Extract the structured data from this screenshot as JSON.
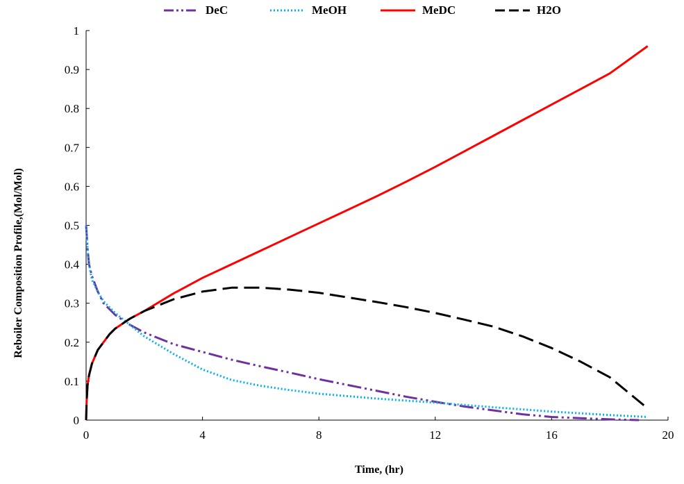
{
  "chart_data": {
    "type": "line",
    "title": "",
    "xlabel": "Time, (hr)",
    "ylabel": "Reboiler Composition Profile,(Mol/Mol)",
    "xlim": [
      0,
      20
    ],
    "ylim": [
      0,
      1
    ],
    "x_ticks": [
      "0",
      "4",
      "8",
      "12",
      "16",
      "20"
    ],
    "y_ticks": [
      "0",
      "0.1",
      "0.2",
      "0.3",
      "0.4",
      "0.5",
      "0.6",
      "0.7",
      "0.8",
      "0.9",
      "1"
    ],
    "grid": false,
    "legend_position": "top",
    "series": [
      {
        "name": "DeC",
        "color": "#7030a0",
        "dash": "dash-dot-dot",
        "points": [
          [
            0,
            0.5
          ],
          [
            0.05,
            0.44
          ],
          [
            0.1,
            0.4
          ],
          [
            0.2,
            0.37
          ],
          [
            0.4,
            0.33
          ],
          [
            0.6,
            0.3
          ],
          [
            0.8,
            0.285
          ],
          [
            1,
            0.27
          ],
          [
            1.5,
            0.245
          ],
          [
            2,
            0.225
          ],
          [
            3,
            0.195
          ],
          [
            4,
            0.175
          ],
          [
            5,
            0.155
          ],
          [
            6,
            0.138
          ],
          [
            7,
            0.122
          ],
          [
            8,
            0.105
          ],
          [
            9,
            0.09
          ],
          [
            10,
            0.075
          ],
          [
            11,
            0.06
          ],
          [
            12,
            0.047
          ],
          [
            13,
            0.035
          ],
          [
            14,
            0.025
          ],
          [
            15,
            0.015
          ],
          [
            16,
            0.008
          ],
          [
            17,
            0.005
          ],
          [
            18,
            0.002
          ],
          [
            19,
            0.0
          ]
        ]
      },
      {
        "name": "MeOH",
        "color": "#00b0f0",
        "dash": "dotted",
        "points": [
          [
            0,
            0.5
          ],
          [
            0.05,
            0.44
          ],
          [
            0.1,
            0.4
          ],
          [
            0.2,
            0.36
          ],
          [
            0.4,
            0.33
          ],
          [
            0.6,
            0.305
          ],
          [
            0.8,
            0.29
          ],
          [
            1,
            0.275
          ],
          [
            1.5,
            0.245
          ],
          [
            2,
            0.215
          ],
          [
            3,
            0.17
          ],
          [
            4,
            0.13
          ],
          [
            5,
            0.103
          ],
          [
            6,
            0.088
          ],
          [
            7,
            0.077
          ],
          [
            8,
            0.068
          ],
          [
            10,
            0.055
          ],
          [
            12,
            0.045
          ],
          [
            14,
            0.033
          ],
          [
            16,
            0.022
          ],
          [
            18,
            0.013
          ],
          [
            19.3,
            0.008
          ]
        ]
      },
      {
        "name": "MeDC",
        "color": "#ff0000",
        "dash": "solid",
        "points": [
          [
            0,
            0.0
          ],
          [
            0.02,
            0.05
          ],
          [
            0.05,
            0.09
          ],
          [
            0.1,
            0.115
          ],
          [
            0.2,
            0.145
          ],
          [
            0.4,
            0.18
          ],
          [
            0.6,
            0.2
          ],
          [
            0.8,
            0.22
          ],
          [
            1,
            0.235
          ],
          [
            1.5,
            0.26
          ],
          [
            2,
            0.28
          ],
          [
            3,
            0.325
          ],
          [
            4,
            0.365
          ],
          [
            5,
            0.4
          ],
          [
            6,
            0.435
          ],
          [
            7,
            0.47
          ],
          [
            8,
            0.505
          ],
          [
            9,
            0.54
          ],
          [
            10,
            0.575
          ],
          [
            11,
            0.612
          ],
          [
            12,
            0.65
          ],
          [
            13,
            0.69
          ],
          [
            14,
            0.73
          ],
          [
            15,
            0.77
          ],
          [
            16,
            0.81
          ],
          [
            17,
            0.85
          ],
          [
            18,
            0.89
          ],
          [
            19.3,
            0.96
          ]
        ]
      },
      {
        "name": "H2O",
        "color": "#000000",
        "dash": "long-dash",
        "points": [
          [
            0,
            0.0
          ],
          [
            0.02,
            0.05
          ],
          [
            0.05,
            0.09
          ],
          [
            0.1,
            0.115
          ],
          [
            0.2,
            0.145
          ],
          [
            0.4,
            0.18
          ],
          [
            0.6,
            0.2
          ],
          [
            0.8,
            0.22
          ],
          [
            1,
            0.235
          ],
          [
            1.5,
            0.26
          ],
          [
            2,
            0.28
          ],
          [
            3,
            0.31
          ],
          [
            4,
            0.33
          ],
          [
            5,
            0.34
          ],
          [
            6,
            0.34
          ],
          [
            7,
            0.335
          ],
          [
            8,
            0.327
          ],
          [
            9,
            0.315
          ],
          [
            10,
            0.303
          ],
          [
            11,
            0.29
          ],
          [
            12,
            0.275
          ],
          [
            13,
            0.258
          ],
          [
            14,
            0.24
          ],
          [
            15,
            0.215
          ],
          [
            16,
            0.185
          ],
          [
            17,
            0.15
          ],
          [
            18,
            0.11
          ],
          [
            19.3,
            0.03
          ]
        ]
      }
    ]
  }
}
